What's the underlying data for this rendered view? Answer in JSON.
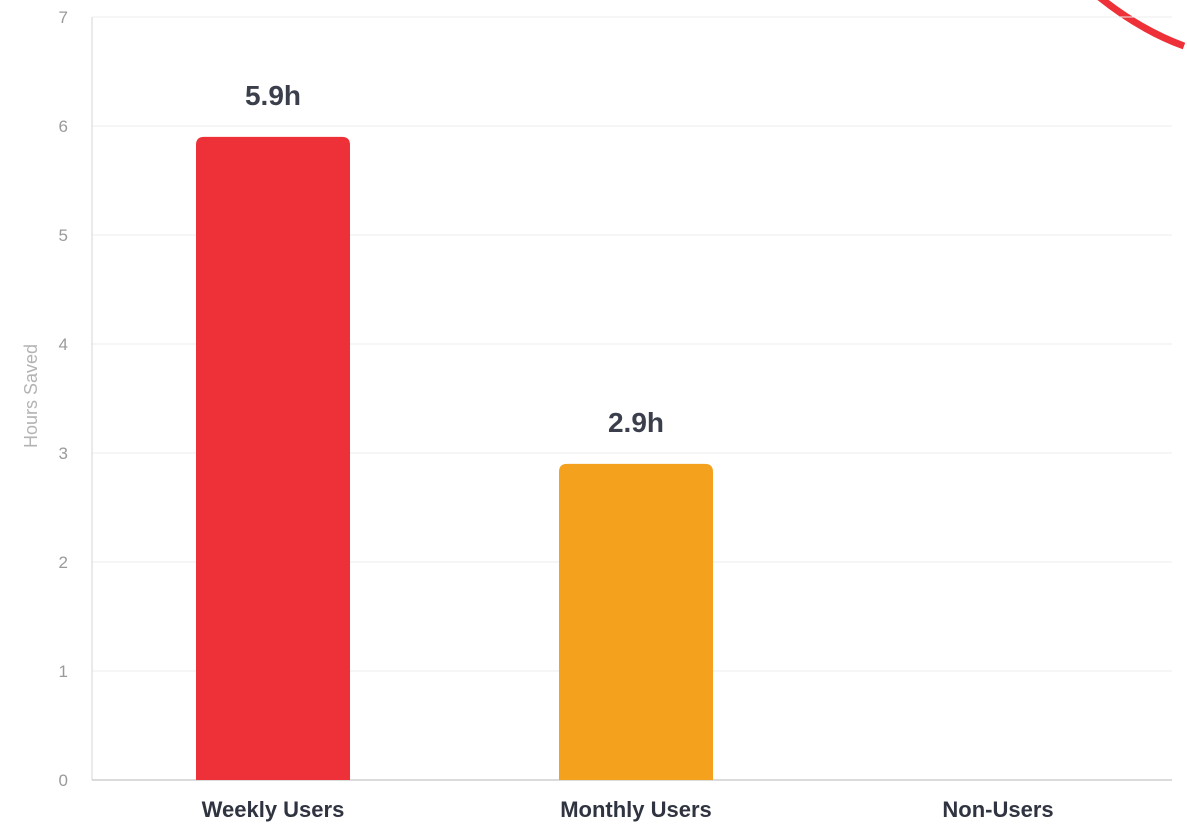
{
  "chart_data": {
    "type": "bar",
    "categories": [
      "Weekly Users",
      "Monthly Users",
      "Non-Users"
    ],
    "values": [
      5.9,
      2.9,
      0
    ],
    "data_labels": [
      "5.9h",
      "2.9h",
      ""
    ],
    "colors": [
      "#ee3139",
      "#f4a11d",
      "#cccccc"
    ],
    "title": "",
    "xlabel": "",
    "ylabel": "Hours Saved",
    "ylim": [
      0,
      7
    ],
    "yticks": [
      0,
      1,
      2,
      3,
      4,
      5,
      6,
      7
    ],
    "grid": true,
    "legend": "none"
  },
  "decoration": {
    "corner_badge_color": "#ee3139"
  }
}
